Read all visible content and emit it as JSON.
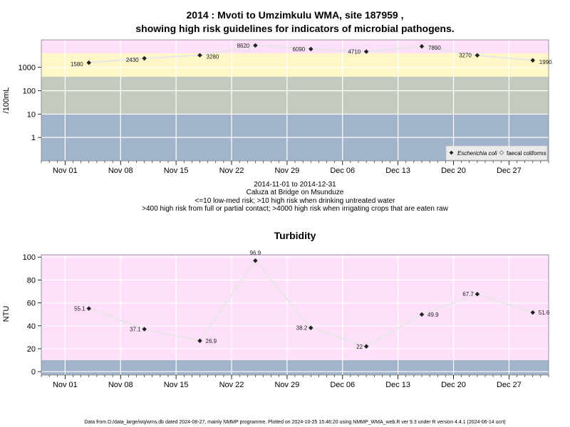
{
  "colors": {
    "band_pink": "#ffe0fa",
    "band_yellow": "#fff7c8",
    "band_gray": "#c3cbbf",
    "band_blue": "#a2b3cc",
    "line": "#e6e6e6",
    "point": "#222222",
    "grid": "#ffffff",
    "frame": "#7f7f7f"
  },
  "chart_data": [
    {
      "type": "line",
      "title": "2014 : Mvoti to Umzimkulu WMA, site 187959 ,",
      "subtitle": "showing high risk guidelines for indicators of microbial pathogens.",
      "ylabel": "/100mL",
      "yscale": "log",
      "ylim": [
        0.1,
        15000
      ],
      "yticks": [
        1,
        10,
        100,
        1000
      ],
      "ytick_labels": [
        "1",
        "10",
        "100",
        "1000"
      ],
      "xlim": [
        "2014-10-29",
        "2015-01-01"
      ],
      "xticks": [
        "2014-11-01",
        "2014-11-08",
        "2014-11-15",
        "2014-11-22",
        "2014-11-29",
        "2014-12-06",
        "2014-12-13",
        "2014-12-20",
        "2014-12-27"
      ],
      "xtick_labels": [
        "Nov 01",
        "Nov 08",
        "Nov 15",
        "Nov 22",
        "Nov 29",
        "Dec 06",
        "Dec 13",
        "Dec 20",
        "Dec 27"
      ],
      "bands": [
        {
          "from": 0.1,
          "to": 10,
          "color": "#a2b3cc"
        },
        {
          "from": 10,
          "to": 400,
          "color": "#c3cbbf"
        },
        {
          "from": 400,
          "to": 4000,
          "color": "#fff7c8"
        },
        {
          "from": 4000,
          "to": 15000,
          "color": "#ffe0fa"
        }
      ],
      "series": [
        {
          "name": "Escherichia coli",
          "x": [
            "2014-11-04",
            "2014-11-11",
            "2014-11-18",
            "2014-11-25",
            "2014-12-02",
            "2014-12-09",
            "2014-12-16",
            "2014-12-23",
            "2014-12-30"
          ],
          "values": [
            1580,
            2430,
            3280,
            8620,
            6090,
            4710,
            7890,
            3270,
            1990
          ],
          "labels": [
            "1580",
            "2430",
            "3280",
            "8620",
            "6090",
            "4710",
            "7890",
            "3270",
            "1990"
          ]
        }
      ],
      "legend": {
        "position": "bottom-right",
        "entries": [
          "Escherichia coli",
          "faecal coliforms"
        ]
      },
      "grid": true,
      "caption_lines": [
        "2014-11-01 to 2014-12-31",
        "Caluza at Bridge on Msunduze",
        "<=10 low-med risk; >10 high risk when drinking untreated water",
        ">400 high risk from full or partial contact; >4000 high risk when irrigating crops that are eaten raw"
      ]
    },
    {
      "type": "line",
      "title": "Turbidity",
      "ylabel": "NTU",
      "yscale": "linear",
      "ylim": [
        -3,
        102
      ],
      "yticks": [
        0,
        20,
        40,
        60,
        80,
        100
      ],
      "ytick_labels": [
        "0",
        "20",
        "40",
        "60",
        "80",
        "100"
      ],
      "xlim": [
        "2014-10-29",
        "2015-01-01"
      ],
      "xticks": [
        "2014-11-01",
        "2014-11-08",
        "2014-11-15",
        "2014-11-22",
        "2014-11-29",
        "2014-12-06",
        "2014-12-13",
        "2014-12-20",
        "2014-12-27"
      ],
      "xtick_labels": [
        "Nov 01",
        "Nov 08",
        "Nov 15",
        "Nov 22",
        "Nov 29",
        "Dec 06",
        "Dec 13",
        "Dec 20",
        "Dec 27"
      ],
      "bands": [
        {
          "from": -3,
          "to": 10,
          "color": "#a2b3cc"
        },
        {
          "from": 10,
          "to": 102,
          "color": "#ffe0fa"
        }
      ],
      "series": [
        {
          "name": "",
          "x": [
            "2014-11-04",
            "2014-11-11",
            "2014-11-18",
            "2014-11-25",
            "2014-12-02",
            "2014-12-09",
            "2014-12-16",
            "2014-12-23",
            "2014-12-30"
          ],
          "values": [
            55.1,
            37.1,
            26.9,
            96.9,
            38.2,
            22,
            49.9,
            67.7,
            51.6
          ],
          "labels": [
            "55.1",
            "37.1",
            "26.9",
            "96.9",
            "38.2",
            "22",
            "49.9",
            "67.7",
            "51.6"
          ]
        }
      ],
      "grid": true
    }
  ],
  "footer": "Data from D:/data_large/wq/wms.db dated 2024-08-27, mainly NMMP programme. Plotted on 2024-10-25 15:46:20 using NMMP_WMA_web.R ver 9.3 under R version 4.4.1 (2024-06-14 ucrt)"
}
